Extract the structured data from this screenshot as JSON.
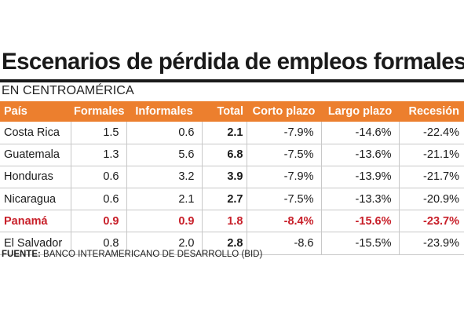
{
  "title": "Escenarios de pérdida de empleos formales",
  "subtitle": "EN CENTROAMÉRICA",
  "table": {
    "headers": [
      "País",
      "Formales",
      "Informales",
      "Total",
      "Corto plazo",
      "Largo plazo",
      "Recesión"
    ],
    "rows": [
      {
        "pais": "Costa Rica",
        "formales": "1.5",
        "informales": "0.6",
        "total": "2.1",
        "corto": "-7.9%",
        "largo": "-14.6%",
        "recesion": "-22.4%"
      },
      {
        "pais": "Guatemala",
        "formales": "1.3",
        "informales": "5.6",
        "total": "6.8",
        "corto": "-7.5%",
        "largo": "-13.6%",
        "recesion": "-21.1%"
      },
      {
        "pais": "Honduras",
        "formales": "0.6",
        "informales": "3.2",
        "total": "3.9",
        "corto": "-7.9%",
        "largo": "-13.9%",
        "recesion": "-21.7%"
      },
      {
        "pais": "Nicaragua",
        "formales": "0.6",
        "informales": "2.1",
        "total": "2.7",
        "corto": "-7.5%",
        "largo": "-13.3%",
        "recesion": "-20.9%"
      },
      {
        "pais": "Panamá",
        "formales": "0.9",
        "informales": "0.9",
        "total": "1.8",
        "corto": "-8.4%",
        "largo": "-15.6%",
        "recesion": "-23.7%"
      },
      {
        "pais": "El Salvador",
        "formales": "0.8",
        "informales": "2.0",
        "total": "2.8",
        "corto": "-8.6",
        "largo": "-15.5%",
        "recesion": "-23.9%"
      }
    ]
  },
  "source": {
    "label": "FUENTE:",
    "text": " BANCO INTERAMERICANO DE DESARROLLO (BID)"
  },
  "colors": {
    "header_bg": "#ec7f2e",
    "highlight_text": "#c8202a"
  }
}
